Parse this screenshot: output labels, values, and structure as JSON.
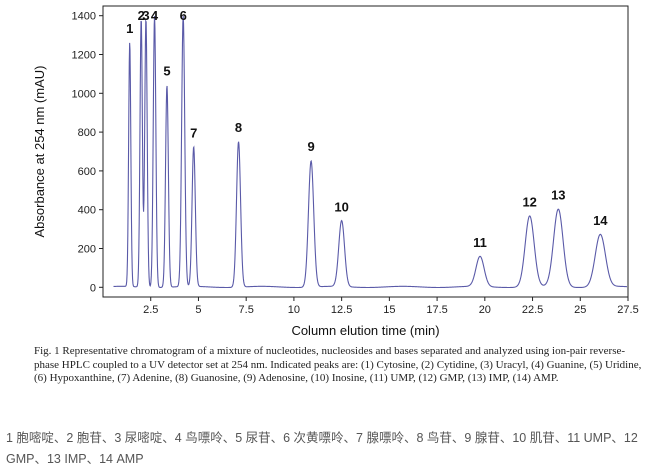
{
  "chart_data": {
    "type": "line",
    "xlabel": "Column elution time (min)",
    "ylabel": "Absorbance at 254 nm (mAU)",
    "xlim": [
      0,
      27.5
    ],
    "ylim": [
      -50,
      1450
    ],
    "xticks": [
      "2.5",
      "5",
      "7.5",
      "10",
      "12.5",
      "15",
      "17.5",
      "20",
      "22.5",
      "25",
      "27.5"
    ],
    "yticks": [
      "0",
      "200",
      "400",
      "600",
      "800",
      "1000",
      "1200",
      "1400"
    ],
    "grid": false,
    "line_color": "#5a5aa8",
    "peaks": [
      {
        "label": "1",
        "x": 1.4,
        "y": 1260
      },
      {
        "label": "2",
        "x": 2.0,
        "y": 1385
      },
      {
        "label": "3",
        "x": 2.25,
        "y": 1385
      },
      {
        "label": "4",
        "x": 2.7,
        "y": 1400
      },
      {
        "label": "5",
        "x": 3.35,
        "y": 1040
      },
      {
        "label": "6",
        "x": 4.2,
        "y": 1395
      },
      {
        "label": "7",
        "x": 4.75,
        "y": 720
      },
      {
        "label": "8",
        "x": 7.1,
        "y": 750
      },
      {
        "label": "9",
        "x": 10.9,
        "y": 650
      },
      {
        "label": "10",
        "x": 12.5,
        "y": 340
      },
      {
        "label": "11",
        "x": 19.75,
        "y": 155
      },
      {
        "label": "12",
        "x": 22.35,
        "y": 365
      },
      {
        "label": "13",
        "x": 23.85,
        "y": 400
      },
      {
        "label": "14",
        "x": 26.05,
        "y": 270
      }
    ]
  },
  "caption": "Fig. 1 Representative chromatogram of a mixture of nucleotides, nucleosides and bases separated and analyzed using ion-pair reverse-phase HPLC coupled to a UV detector set at 254 nm. Indicated peaks are: (1) Cytosine, (2) Cytidine, (3) Uracyl, (4) Guanine, (5) Uridine, (6) Hypoxanthine, (7) Adenine, (8) Guanosine, (9) Adenosine, (10) Inosine, (11) UMP, (12) GMP, (13) IMP, (14) AMP.",
  "note": "1 胞嘧啶、2 胞苷、3 尿嘧啶、4 鸟嘌呤、5 尿苷、6 次黄嘌呤、7 腺嘌呤、8 鸟苷、9 腺苷、10 肌苷、11 UMP、12 GMP、13 IMP、14 AMP"
}
